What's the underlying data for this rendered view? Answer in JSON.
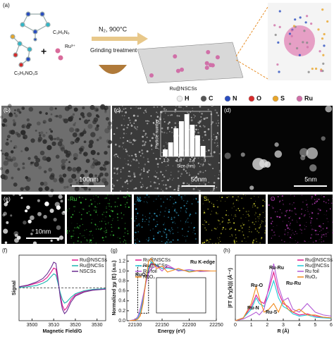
{
  "panels": {
    "a": {
      "label": "(a)",
      "reactant_1": "C₃H₆N₆",
      "reactant_2": "C₅H₉NO₃S",
      "plus": "+",
      "metal": "Ru³⁺",
      "condition": "N₂, 900°C",
      "process": "Grinding treatment",
      "product": "Ru@NSCSs",
      "atoms": [
        "H",
        "C",
        "N",
        "O",
        "S",
        "Ru"
      ]
    },
    "b": {
      "label": "(b)",
      "scale": "100nm"
    },
    "c": {
      "label": "(c)",
      "scale": "50nm"
    },
    "d": {
      "label": "(d)",
      "scale": "5nm"
    },
    "e": {
      "label": "(e)",
      "scale": "10nm",
      "maps": [
        "Ru",
        "N",
        "S",
        "O"
      ]
    },
    "f": {
      "label": "(f)"
    },
    "g": {
      "label": "(g)"
    },
    "h": {
      "label": "(h)"
    }
  },
  "chart_data": [
    {
      "type": "histogram",
      "x_label": "Size (nm)",
      "y_label": "Particle number",
      "bins": [
        1.05,
        1.3,
        1.55,
        1.8,
        2.05,
        2.3,
        2.55,
        2.8,
        3.05
      ],
      "values": [
        2,
        4,
        8,
        10,
        12,
        9,
        6,
        3
      ],
      "xlim": [
        0.95,
        3.3
      ],
      "xticks": [
        1.2,
        1.8,
        2.4,
        3.0
      ],
      "color": "#ffffff"
    },
    {
      "type": "line",
      "x_label": "Magnetic Field/G",
      "y_label": "Signal",
      "x": [
        3494,
        3498,
        3502,
        3505,
        3507,
        3509,
        3510,
        3511,
        3512,
        3513,
        3514,
        3515,
        3516,
        3518,
        3520,
        3524,
        3528,
        3534
      ],
      "xlim": [
        3494,
        3534
      ],
      "xticks": [
        3500,
        3510,
        3520,
        3530
      ],
      "ylim": [
        -1.4,
        1.4
      ],
      "series": [
        {
          "name": "Ru@NSCSs",
          "color": "#e0148c",
          "values": [
            0.05,
            0.1,
            0.2,
            0.3,
            0.45,
            0.7,
            0.85,
            0.8,
            0.3,
            -0.3,
            -0.75,
            -0.95,
            -0.85,
            -0.5,
            -0.3,
            -0.15,
            -0.08,
            -0.05
          ]
        },
        {
          "name": "Ru@NCSs",
          "color": "#1fb5b0",
          "values": [
            0.02,
            0.05,
            0.1,
            0.2,
            0.3,
            0.5,
            0.6,
            0.55,
            0.2,
            -0.2,
            -0.5,
            -0.65,
            -0.6,
            -0.4,
            -0.25,
            -0.12,
            -0.06,
            -0.03
          ]
        },
        {
          "name": "NSCSs",
          "color": "#6a2c91",
          "values": [
            0.05,
            0.12,
            0.25,
            0.4,
            0.6,
            0.9,
            1.1,
            1.05,
            0.4,
            -0.4,
            -0.9,
            -1.1,
            -1.0,
            -0.6,
            -0.35,
            -0.18,
            -0.1,
            -0.05
          ]
        }
      ],
      "legend": "upper-right"
    },
    {
      "type": "line",
      "x_label": "Energy (eV)",
      "y_label": "Normalized χμ (E) (a.u.)",
      "annotations": [
        "Ru K-edge",
        "RuO₂"
      ],
      "x": [
        22090,
        22100,
        22105,
        22110,
        22115,
        22120,
        22125,
        22130,
        22140,
        22150,
        22160,
        22180,
        22200,
        22220,
        22240,
        22250
      ],
      "xlim": [
        22085,
        22250
      ],
      "xticks": [
        22100,
        22150,
        22200,
        22250
      ],
      "ylim": [
        0,
        1.32
      ],
      "yticks": [
        {
          "value": 0,
          "label": "0.0"
        },
        0.2,
        0.4,
        0.6,
        0.8,
        {
          "value": 1,
          "label": "1.0"
        },
        1.2
      ],
      "series": [
        {
          "name": "Ru@NSCSs",
          "color": "#e0148c",
          "values": [
            0.0,
            0.02,
            0.05,
            0.15,
            0.4,
            0.75,
            1.0,
            1.15,
            1.1,
            1.05,
            1.08,
            1.02,
            1.0,
            1.01,
            1.0,
            1.0
          ]
        },
        {
          "name": "Ru@NCSs",
          "color": "#1fc8d8",
          "values": [
            0.0,
            0.02,
            0.05,
            0.17,
            0.45,
            0.8,
            1.05,
            1.18,
            1.12,
            1.05,
            1.06,
            1.02,
            1.0,
            1.0,
            1.0,
            1.0
          ]
        },
        {
          "name": "Ru foil",
          "color": "#b35ad6",
          "values": [
            0.0,
            0.02,
            0.08,
            0.25,
            0.5,
            0.75,
            0.95,
            1.05,
            1.1,
            1.0,
            1.12,
            1.0,
            1.03,
            0.99,
            1.0,
            1.0
          ]
        },
        {
          "name": "RuO₂",
          "color": "#f08a1c",
          "values": [
            0.0,
            0.01,
            0.03,
            0.1,
            0.35,
            0.8,
            1.2,
            1.25,
            1.05,
            1.1,
            0.98,
            1.05,
            0.98,
            1.01,
            1.0,
            1.0
          ]
        }
      ],
      "legend": "upper-left"
    },
    {
      "type": "line",
      "x_label": "R (Å)",
      "y_label": "|FT (k³χ(k))| (Å⁻⁴)",
      "annotations": [
        "Ru-O",
        "Ru-N",
        "Ru-S",
        "Ru-Ru",
        "Ru-Ru"
      ],
      "x": [
        0,
        0.5,
        1,
        1.3,
        1.5,
        1.8,
        2.1,
        2.4,
        2.7,
        3.0,
        3.3,
        3.6,
        4.0,
        4.5,
        5,
        5.5,
        6
      ],
      "xlim": [
        0,
        6
      ],
      "xticks": [
        0,
        1,
        2,
        3,
        4,
        5,
        6
      ],
      "ylim": [
        0,
        1.15
      ],
      "series": [
        {
          "name": "Ru@NSCSs",
          "color": "#e0148c",
          "values": [
            0,
            0.05,
            0.25,
            0.45,
            0.35,
            0.3,
            0.55,
            0.85,
            0.5,
            0.3,
            0.25,
            0.15,
            0.1,
            0.12,
            0.08,
            0.06,
            0.05
          ]
        },
        {
          "name": "Ru@NCSs",
          "color": "#1fc8d8",
          "values": [
            0,
            0.05,
            0.2,
            0.4,
            0.3,
            0.25,
            0.45,
            0.7,
            0.4,
            0.25,
            0.2,
            0.12,
            0.08,
            0.1,
            0.06,
            0.05,
            0.04
          ]
        },
        {
          "name": "Ru foil",
          "color": "#b35ad6",
          "values": [
            0,
            0.03,
            0.1,
            0.15,
            0.1,
            0.2,
            0.6,
            1.0,
            0.6,
            0.35,
            0.4,
            0.2,
            0.15,
            0.3,
            0.15,
            0.1,
            0.08
          ]
        },
        {
          "name": "RuO₂",
          "color": "#f08a1c",
          "values": [
            0,
            0.05,
            0.3,
            0.6,
            0.4,
            0.15,
            0.2,
            0.3,
            0.15,
            0.35,
            0.2,
            0.15,
            0.2,
            0.1,
            0.1,
            0.06,
            0.05
          ]
        }
      ],
      "legend": "upper-right"
    }
  ]
}
